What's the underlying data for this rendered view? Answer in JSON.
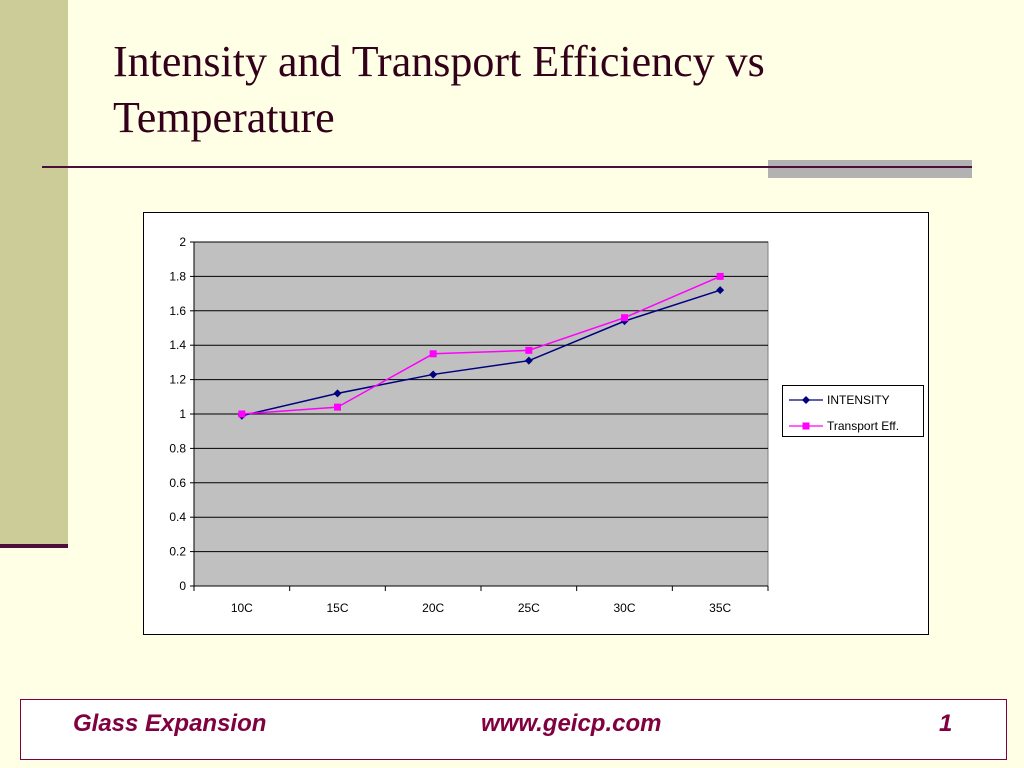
{
  "slide": {
    "title": "Intensity and Transport Efficiency vs Temperature",
    "footer": {
      "company": "Glass Expansion",
      "website": "www.geicp.com",
      "page_number": "1"
    }
  },
  "colors": {
    "accent": "#4d0f3a",
    "left_bar": "#cccc99",
    "background": "#ffffe5",
    "plot_area": "#c0c0c0",
    "footer_text": "#800040"
  },
  "chart_data": {
    "type": "line",
    "title": "",
    "xlabel": "",
    "ylabel": "",
    "categories": [
      "10C",
      "15C",
      "20C",
      "25C",
      "30C",
      "35C"
    ],
    "ylim": [
      0,
      2
    ],
    "yticks": [
      "0",
      "0.2",
      "0.4",
      "0.6",
      "0.8",
      "1",
      "1.2",
      "1.4",
      "1.6",
      "1.8",
      "2"
    ],
    "grid": true,
    "legend_position": "right",
    "series": [
      {
        "name": "INTENSITY",
        "color": "#000080",
        "marker": "diamond",
        "values": [
          0.99,
          1.12,
          1.23,
          1.31,
          1.54,
          1.72
        ]
      },
      {
        "name": "Transport Eff.",
        "color": "#ff00ff",
        "marker": "square",
        "values": [
          1.0,
          1.04,
          1.35,
          1.37,
          1.56,
          1.8
        ]
      }
    ]
  }
}
